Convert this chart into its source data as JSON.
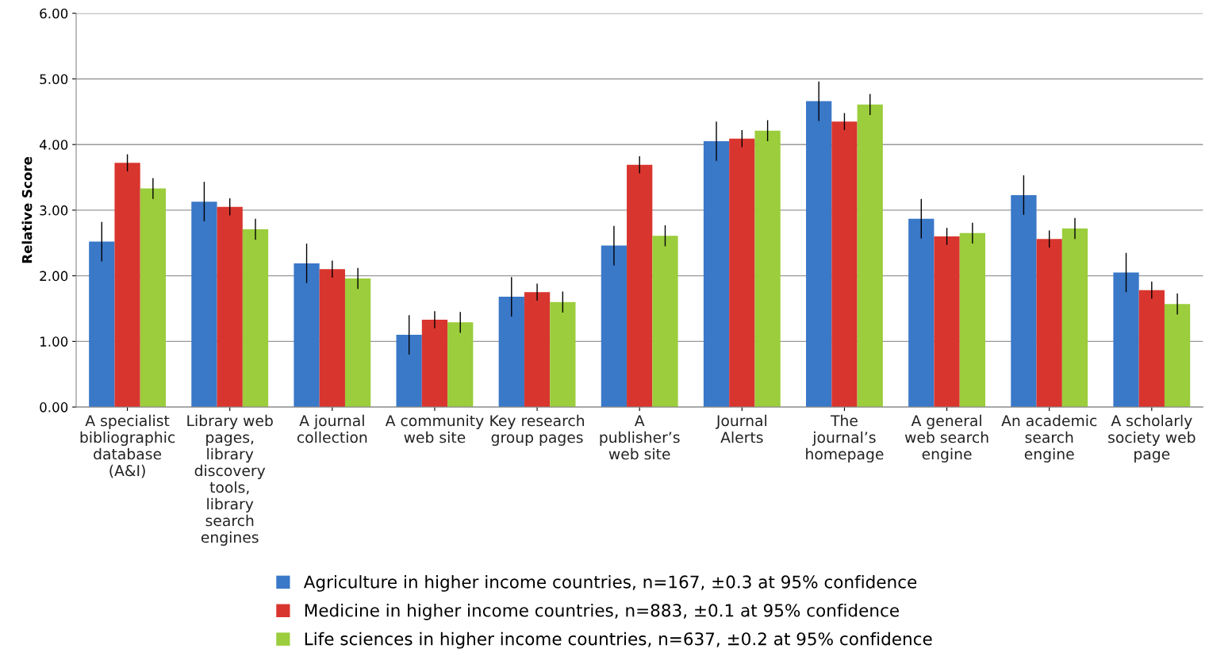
{
  "chart_data": {
    "type": "bar",
    "ylabel": "Relative Score",
    "categories": [
      "A specialist bibliographic database (A&I)",
      "Library web pages, library discovery tools, library search engines",
      "A journal collection",
      "A community web site",
      "Key research group pages",
      "A publisher’s web site",
      "Journal Alerts",
      "The journal’s homepage",
      "A general web search engine",
      "An academic search engine",
      "A scholarly society web page"
    ],
    "series": [
      {
        "name": "Agriculture in higher income countries, n=167, ±0.3 at 95% confidence",
        "color": "#3a78c8",
        "values": [
          2.52,
          3.13,
          2.19,
          1.1,
          1.68,
          2.46,
          4.05,
          4.66,
          2.87,
          3.23,
          2.05
        ],
        "errors": [
          0.3,
          0.3,
          0.3,
          0.3,
          0.3,
          0.3,
          0.3,
          0.3,
          0.3,
          0.3,
          0.3
        ]
      },
      {
        "name": "Medicine in higher income countries, n=883, ±0.1 at 95% confidence",
        "color": "#d9352f",
        "values": [
          3.72,
          3.05,
          2.1,
          1.33,
          1.75,
          3.69,
          4.09,
          4.35,
          2.6,
          2.56,
          1.78
        ],
        "errors": [
          0.13,
          0.13,
          0.13,
          0.13,
          0.13,
          0.13,
          0.13,
          0.13,
          0.13,
          0.13,
          0.13
        ]
      },
      {
        "name": "Life sciences in higher income countries, n=637, ±0.2 at 95% confidence",
        "color": "#9bcd3c",
        "values": [
          3.33,
          2.71,
          1.96,
          1.29,
          1.6,
          2.61,
          4.21,
          4.61,
          2.65,
          2.72,
          1.57
        ],
        "errors": [
          0.16,
          0.16,
          0.16,
          0.16,
          0.16,
          0.16,
          0.16,
          0.16,
          0.16,
          0.16,
          0.16
        ]
      }
    ],
    "ylim": [
      0,
      6
    ],
    "yticks": [
      {
        "value": 0,
        "label": "0.00"
      },
      {
        "value": 1,
        "label": "1.00"
      },
      {
        "value": 2,
        "label": "2.00"
      },
      {
        "value": 3,
        "label": "3.00"
      },
      {
        "value": 4,
        "label": "4.00"
      },
      {
        "value": 5,
        "label": "5.00"
      },
      {
        "value": 6,
        "label": "6.00"
      }
    ],
    "grid": "y",
    "legend": "bottom"
  }
}
